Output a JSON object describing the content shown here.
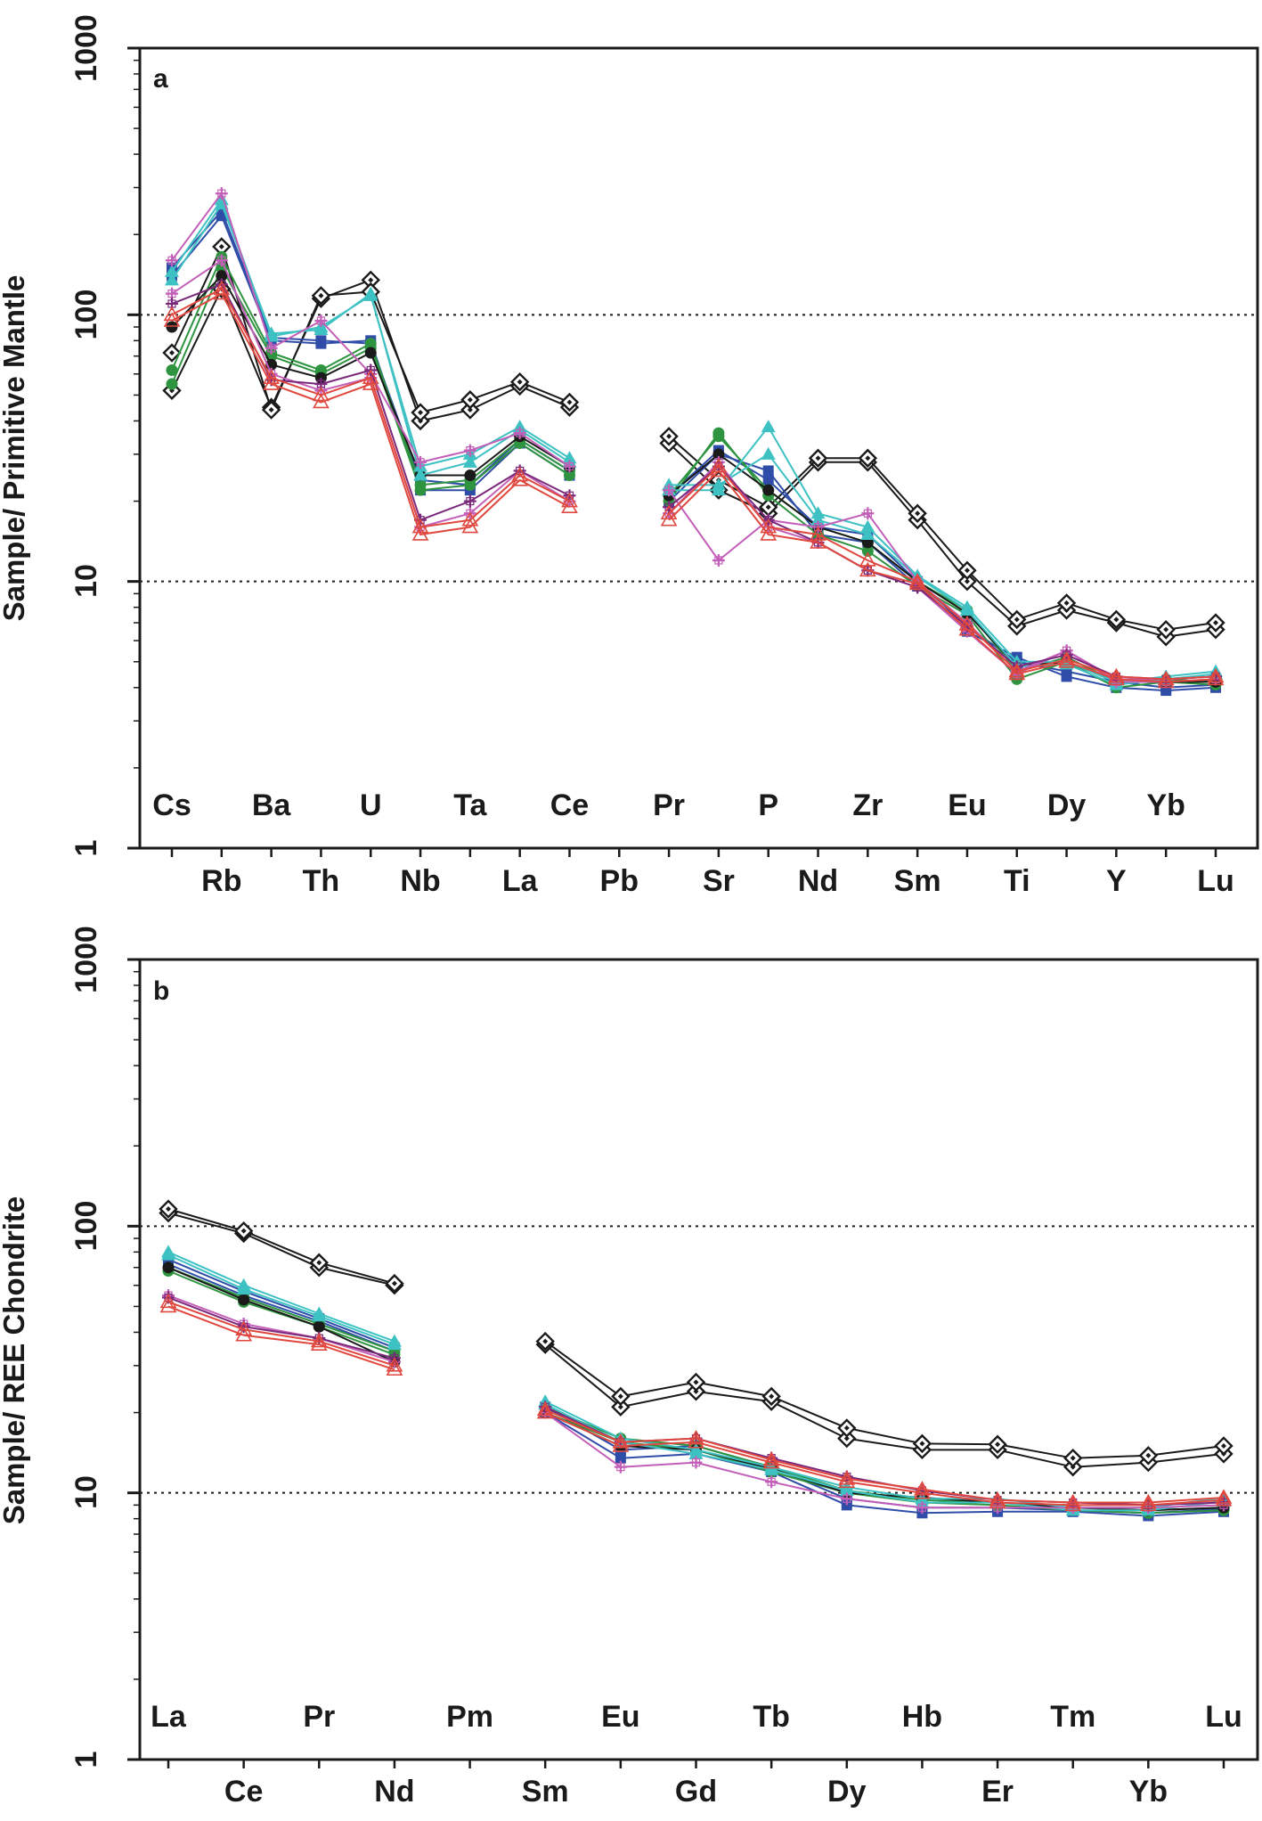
{
  "chart_data": [
    {
      "type": "line",
      "panel_label": "a",
      "ylabel": "Sample/ Primitive Mantle",
      "yscale": "log",
      "ylim": [
        1,
        1000
      ],
      "yticks": [
        "1",
        "10",
        "100",
        "1000"
      ],
      "reference_lines": [
        10,
        100
      ],
      "categories": [
        "Cs",
        "Rb",
        "Ba",
        "Th",
        "U",
        "Nb",
        "Ta",
        "La",
        "Ce",
        "Pb",
        "Pr",
        "Sr",
        "P",
        "Nd",
        "Zr",
        "Sm",
        "Eu",
        "Ti",
        "Dy",
        "Y",
        "Yb",
        "Lu"
      ],
      "series": [
        {
          "marker": "diamond-open",
          "color": "#1a1a1a",
          "values": [
            52,
            125,
            45,
            115,
            135,
            40,
            44,
            54,
            45,
            null,
            33,
            22,
            18,
            28,
            28,
            17,
            10,
            6.8,
            7.8,
            7.0,
            6.2,
            6.6
          ]
        },
        {
          "marker": "diamond-open",
          "color": "#1a1a1a",
          "values": [
            72,
            180,
            44,
            118,
            122,
            43,
            48,
            56,
            47,
            null,
            35,
            24,
            19,
            29,
            29,
            18,
            11,
            7.2,
            8.3,
            7.2,
            6.6,
            7.0
          ]
        },
        {
          "marker": "square",
          "color": "#2f4da8",
          "values": [
            140,
            235,
            80,
            78,
            80,
            22,
            22,
            33,
            25,
            null,
            20,
            30,
            26,
            15,
            14,
            9.6,
            6.5,
            5.2,
            4.4,
            4.0,
            3.9,
            4.0
          ]
        },
        {
          "marker": "square",
          "color": "#2f4da8",
          "values": [
            150,
            245,
            82,
            80,
            78,
            24,
            23,
            34,
            26,
            null,
            21,
            31,
            24,
            16,
            15,
            10.0,
            6.8,
            5.0,
            4.6,
            4.2,
            4.0,
            4.1
          ]
        },
        {
          "marker": "circle",
          "color": "#2e9440",
          "values": [
            55,
            150,
            70,
            60,
            75,
            22,
            23,
            33,
            25,
            null,
            20,
            36,
            21,
            15,
            13,
            9.6,
            7.5,
            4.3,
            5.0,
            4.0,
            4.2,
            4.1
          ]
        },
        {
          "marker": "circle",
          "color": "#2e9440",
          "values": [
            62,
            165,
            72,
            62,
            78,
            23,
            24,
            34,
            26,
            null,
            21,
            35,
            22,
            16,
            14,
            10.0,
            7.8,
            4.6,
            5.2,
            4.2,
            4.3,
            4.2
          ]
        },
        {
          "marker": "circle",
          "color": "#1a1a1a",
          "values": [
            90,
            140,
            65,
            58,
            72,
            25,
            25,
            35,
            27,
            null,
            21,
            30,
            22,
            16,
            14,
            10.0,
            7.6,
            4.8,
            5.0,
            4.2,
            4.2,
            4.2
          ]
        },
        {
          "marker": "triangle",
          "color": "#3ec1c3",
          "values": [
            135,
            260,
            85,
            88,
            120,
            25,
            28,
            37,
            28,
            null,
            22,
            22,
            38,
            18,
            16,
            10.5,
            8.0,
            5.0,
            5.0,
            4.2,
            4.4,
            4.6
          ]
        },
        {
          "marker": "triangle",
          "color": "#3ec1c3",
          "values": [
            145,
            270,
            83,
            90,
            118,
            27,
            30,
            38,
            29,
            null,
            23,
            23,
            30,
            17,
            15,
            10.4,
            7.8,
            4.8,
            4.9,
            4.1,
            4.3,
            4.5
          ]
        },
        {
          "marker": "plus",
          "color": "#c35fb8",
          "values": [
            160,
            285,
            75,
            95,
            60,
            28,
            31,
            36,
            27,
            null,
            22,
            12,
            17,
            16,
            18,
            10.0,
            7.0,
            4.6,
            5.5,
            4.3,
            4.3,
            4.4
          ]
        },
        {
          "marker": "plus",
          "color": "#c35fb8",
          "values": [
            120,
            160,
            60,
            52,
            58,
            16,
            18,
            26,
            20,
            null,
            18,
            28,
            16,
            14,
            11,
            9.5,
            6.5,
            4.5,
            5.5,
            4.2,
            4.2,
            4.3
          ]
        },
        {
          "marker": "plus",
          "color": "#7b2a7b",
          "values": [
            110,
            130,
            57,
            55,
            62,
            17,
            20,
            26,
            21,
            null,
            19,
            27,
            17,
            14,
            11,
            9.5,
            6.8,
            4.8,
            5.3,
            4.4,
            4.3,
            4.4
          ]
        },
        {
          "marker": "triangle-open",
          "color": "#e0483f",
          "values": [
            95,
            120,
            55,
            47,
            55,
            15,
            16,
            24,
            19,
            null,
            17,
            26,
            15,
            14,
            11,
            9.8,
            6.6,
            4.5,
            5.0,
            4.3,
            4.2,
            4.3
          ]
        },
        {
          "marker": "triangle-open",
          "color": "#e0483f",
          "values": [
            100,
            125,
            58,
            50,
            58,
            16,
            17,
            25,
            20,
            null,
            18,
            27,
            16,
            15,
            12,
            10.0,
            6.9,
            4.6,
            5.1,
            4.4,
            4.3,
            4.4
          ]
        }
      ]
    },
    {
      "type": "line",
      "panel_label": "b",
      "ylabel": "Sample/ REE Chondrite",
      "yscale": "log",
      "ylim": [
        1,
        1000
      ],
      "yticks": [
        "1",
        "10",
        "100",
        "1000"
      ],
      "reference_lines": [
        10,
        100
      ],
      "categories": [
        "La",
        "Ce",
        "Pr",
        "Nd",
        "Pm",
        "Sm",
        "Eu",
        "Gd",
        "Tb",
        "Dy",
        "Hb",
        "Er",
        "Tm",
        "Yb",
        "Lu"
      ],
      "series": [
        {
          "marker": "diamond-open",
          "color": "#1a1a1a",
          "values": [
            112,
            94,
            70,
            60,
            null,
            36,
            21,
            24,
            22,
            16,
            14.5,
            14.5,
            12.5,
            13.0,
            14.0
          ]
        },
        {
          "marker": "diamond-open",
          "color": "#1a1a1a",
          "values": [
            116,
            96,
            73,
            61,
            null,
            37,
            23,
            26,
            23,
            17.5,
            15.3,
            15.2,
            13.5,
            13.8,
            15.0
          ]
        },
        {
          "marker": "square",
          "color": "#2f4da8",
          "values": [
            72,
            55,
            44,
            34,
            null,
            20,
            13.5,
            14,
            12,
            9.0,
            8.4,
            8.5,
            8.5,
            8.2,
            8.5
          ]
        },
        {
          "marker": "square",
          "color": "#2f4da8",
          "values": [
            75,
            57,
            45,
            35,
            null,
            21,
            14.5,
            15,
            12.5,
            9.5,
            8.8,
            8.8,
            8.6,
            8.4,
            8.7
          ]
        },
        {
          "marker": "circle",
          "color": "#2e9440",
          "values": [
            68,
            52,
            42,
            33,
            null,
            20,
            15.5,
            14.5,
            12.0,
            10.0,
            9.2,
            9.0,
            8.6,
            8.4,
            8.6
          ]
        },
        {
          "marker": "circle",
          "color": "#2e9440",
          "values": [
            70,
            54,
            43,
            34,
            null,
            21,
            16.0,
            15.0,
            12.5,
            10.2,
            9.4,
            9.2,
            8.8,
            8.6,
            8.8
          ]
        },
        {
          "marker": "circle",
          "color": "#1a1a1a",
          "values": [
            70,
            53,
            42,
            31,
            null,
            20,
            15.0,
            14.5,
            12.3,
            10.0,
            9.6,
            9.2,
            8.8,
            8.6,
            8.8
          ]
        },
        {
          "marker": "triangle",
          "color": "#3ec1c3",
          "values": [
            80,
            60,
            47,
            37,
            null,
            22,
            16.0,
            14.5,
            12.5,
            10.5,
            9.5,
            9.5,
            8.8,
            8.8,
            9.6
          ]
        },
        {
          "marker": "triangle",
          "color": "#3ec1c3",
          "values": [
            78,
            58,
            46,
            36,
            null,
            21.5,
            15.5,
            14.0,
            12.2,
            10.2,
            9.2,
            9.2,
            8.6,
            8.6,
            9.3
          ]
        },
        {
          "marker": "plus",
          "color": "#c35fb8",
          "values": [
            55,
            43,
            38,
            31,
            null,
            20,
            12.5,
            13.0,
            11.0,
            9.5,
            8.8,
            8.8,
            8.8,
            8.8,
            9.0
          ]
        },
        {
          "marker": "plus",
          "color": "#7b2a7b",
          "values": [
            54,
            42,
            38,
            32,
            null,
            21,
            15.5,
            16.0,
            13.5,
            11.5,
            10.2,
            9.4,
            9.2,
            9.0,
            9.2
          ]
        },
        {
          "marker": "triangle-open",
          "color": "#e0483f",
          "values": [
            50,
            39,
            36,
            29,
            null,
            20,
            15.0,
            15.5,
            13.0,
            11.0,
            10.0,
            9.2,
            9.0,
            9.0,
            9.4
          ]
        },
        {
          "marker": "triangle-open",
          "color": "#e0483f",
          "values": [
            52,
            41,
            37,
            30,
            null,
            20.5,
            15.5,
            16.0,
            13.3,
            11.3,
            10.3,
            9.4,
            9.2,
            9.2,
            9.6
          ]
        }
      ]
    }
  ]
}
